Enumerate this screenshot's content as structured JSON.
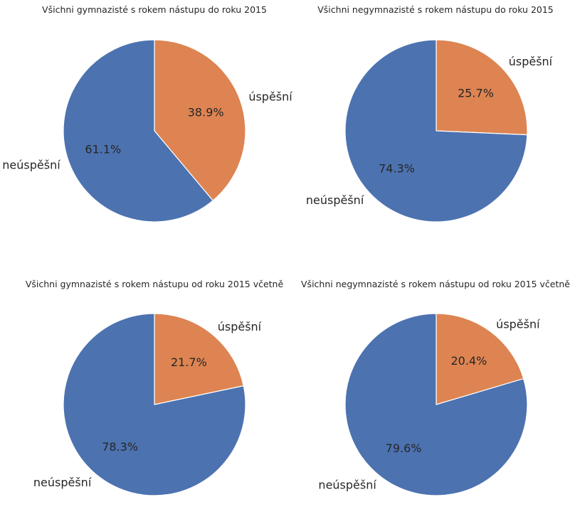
{
  "chart_data": [
    {
      "type": "pie",
      "title": "Všichni gymnazisté s rokem nástupu do roku 2015",
      "slices": [
        {
          "label": "úspěšní",
          "value": 38.9,
          "pct_label": "38.9%",
          "color": "#dd8452"
        },
        {
          "label": "neúspěšní",
          "value": 61.1,
          "pct_label": "61.1%",
          "color": "#4c72b0"
        }
      ]
    },
    {
      "type": "pie",
      "title": "Všichni negymnazisté s rokem nástupu do roku 2015",
      "slices": [
        {
          "label": "úspěšní",
          "value": 25.7,
          "pct_label": "25.7%",
          "color": "#dd8452"
        },
        {
          "label": "neúspěšní",
          "value": 74.3,
          "pct_label": "74.3%",
          "color": "#4c72b0"
        }
      ]
    },
    {
      "type": "pie",
      "title": "Všichni gymnazisté s rokem nástupu od roku 2015 včetně",
      "slices": [
        {
          "label": "úspěšní",
          "value": 21.7,
          "pct_label": "21.7%",
          "color": "#dd8452"
        },
        {
          "label": "neúspěšní",
          "value": 78.3,
          "pct_label": "78.3%",
          "color": "#4c72b0"
        }
      ]
    },
    {
      "type": "pie",
      "title": "Všichni negymnazisté s rokem nástupu od roku 2015 včetně",
      "slices": [
        {
          "label": "úspěšní",
          "value": 20.4,
          "pct_label": "20.4%",
          "color": "#dd8452"
        },
        {
          "label": "neúspěšní",
          "value": 79.6,
          "pct_label": "79.6%",
          "color": "#4c72b0"
        }
      ]
    }
  ]
}
